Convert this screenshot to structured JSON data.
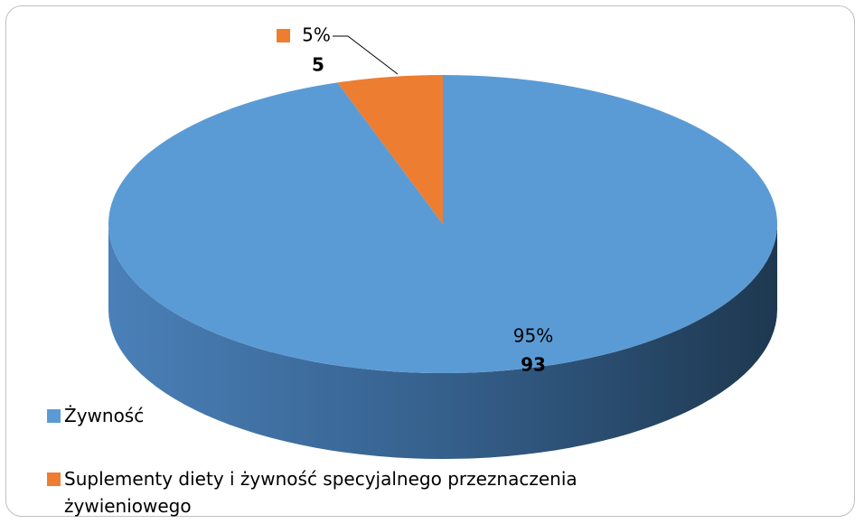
{
  "chart_data": {
    "type": "pie3d",
    "categories": [
      "Żywność",
      "Suplementy diety i żywność specyjalnego przeznaczenia żywieniowego"
    ],
    "values": [
      93,
      5
    ],
    "percent_labels": [
      "95%",
      "5%"
    ],
    "colors": [
      "#5b9bd5",
      "#ed7d31"
    ],
    "legend": "bottom-left"
  }
}
